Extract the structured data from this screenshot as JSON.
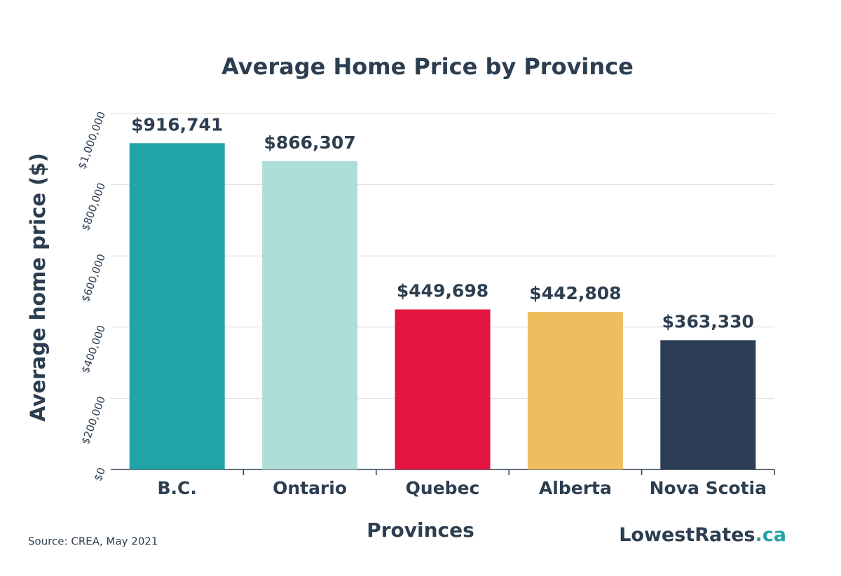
{
  "chart_data": {
    "type": "bar",
    "title": "Average Home Price by Province",
    "xlabel": "Provinces",
    "ylabel": "Average home price ($)",
    "categories": [
      "B.C.",
      "Ontario",
      "Quebec",
      "Alberta",
      "Nova Scotia"
    ],
    "values": [
      916741,
      866307,
      449698,
      442808,
      363330
    ],
    "value_labels": [
      "$916,741",
      "$866,307",
      "$449,698",
      "$442,808",
      "$363,330"
    ],
    "colors": [
      "#22a4a7",
      "#afddd7",
      "#e3143f",
      "#eebd5e",
      "#2c3e55"
    ],
    "ylim": [
      0,
      1000000
    ],
    "yticks": [
      {
        "value": 0,
        "label": "$0"
      },
      {
        "value": 200000,
        "label": "$200,000"
      },
      {
        "value": 400000,
        "label": "$400,000"
      },
      {
        "value": 600000,
        "label": "$600,000"
      },
      {
        "value": 800000,
        "label": "$800,000"
      },
      {
        "value": 1000000,
        "label": "$1,000,000"
      }
    ],
    "grid": true,
    "source": "Source: CREA, May 2021",
    "logo": {
      "name": "LowestRates",
      "suffix": ".ca"
    }
  }
}
